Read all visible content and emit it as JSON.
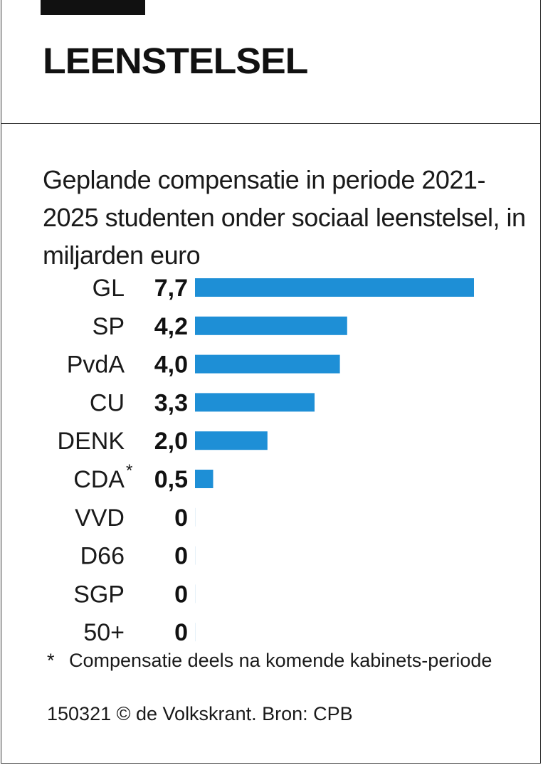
{
  "header": {
    "title": "LEENSTELSEL"
  },
  "subtitle": "Geplande compensatie in periode 2021-2025 studenten onder sociaal leenstelsel, in miljarden euro",
  "chart_data": {
    "type": "bar",
    "orientation": "horizontal",
    "categories": [
      "GL",
      "SP",
      "PvdA",
      "CU",
      "DENK",
      "CDA",
      "VVD",
      "D66",
      "SGP",
      "50+"
    ],
    "category_marks": [
      "",
      "",
      "",
      "",
      "",
      "*",
      "",
      "",
      "",
      ""
    ],
    "values": [
      7.7,
      4.2,
      4.0,
      3.3,
      2.0,
      0.5,
      0,
      0,
      0,
      0
    ],
    "value_labels": [
      "7,7",
      "4,2",
      "4,0",
      "3,3",
      "2,0",
      "0,5",
      "0",
      "0",
      "0",
      "0"
    ],
    "bar_color": "#1e8fd6",
    "grid": false,
    "legend": "none"
  },
  "footnote": {
    "marker": "*",
    "text": "Compensatie deels na komende kabinets-periode"
  },
  "source": "150321 © de Volkskrant. Bron: CPB"
}
